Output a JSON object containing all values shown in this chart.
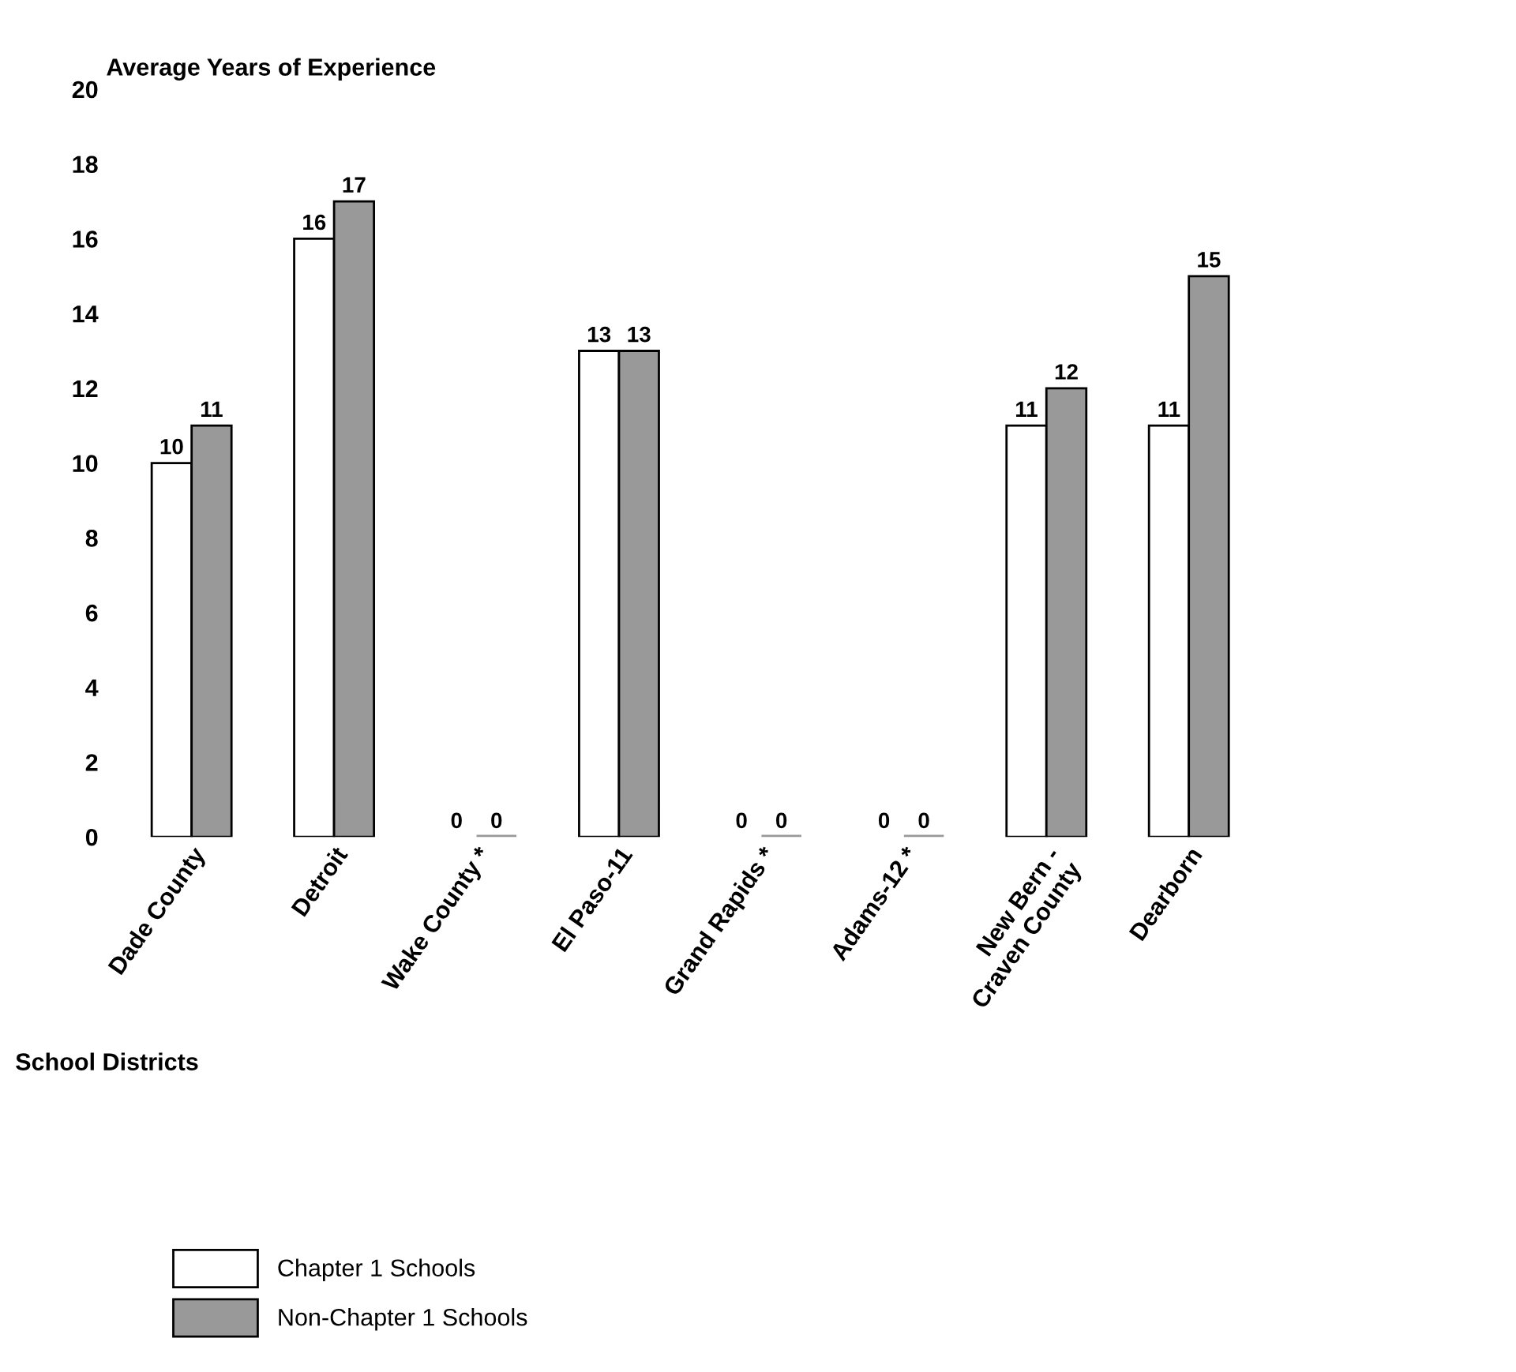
{
  "chart_data": {
    "type": "bar",
    "ylabel": "Average Years of Experience",
    "xlabel": "School Districts",
    "categories": [
      "Dade County",
      "Detroit",
      "Wake County *",
      "El Paso-11",
      "Grand Rapids *",
      "Adams-12 *",
      "New Bern -\nCraven County",
      "Dearborn"
    ],
    "series": [
      {
        "name": "Chapter 1 Schools",
        "color": "#ffffff",
        "values": [
          10,
          16,
          0,
          13,
          0,
          0,
          11,
          11
        ]
      },
      {
        "name": "Non-Chapter 1 Schools",
        "color": "#999999",
        "values": [
          11,
          17,
          0,
          13,
          0,
          0,
          12,
          15
        ]
      }
    ],
    "ylim": [
      0,
      20
    ],
    "yticks": [
      0,
      2,
      4,
      6,
      8,
      10,
      12,
      14,
      16,
      18,
      20
    ],
    "data_labels": true,
    "grid": false,
    "legend": "bottom left"
  }
}
